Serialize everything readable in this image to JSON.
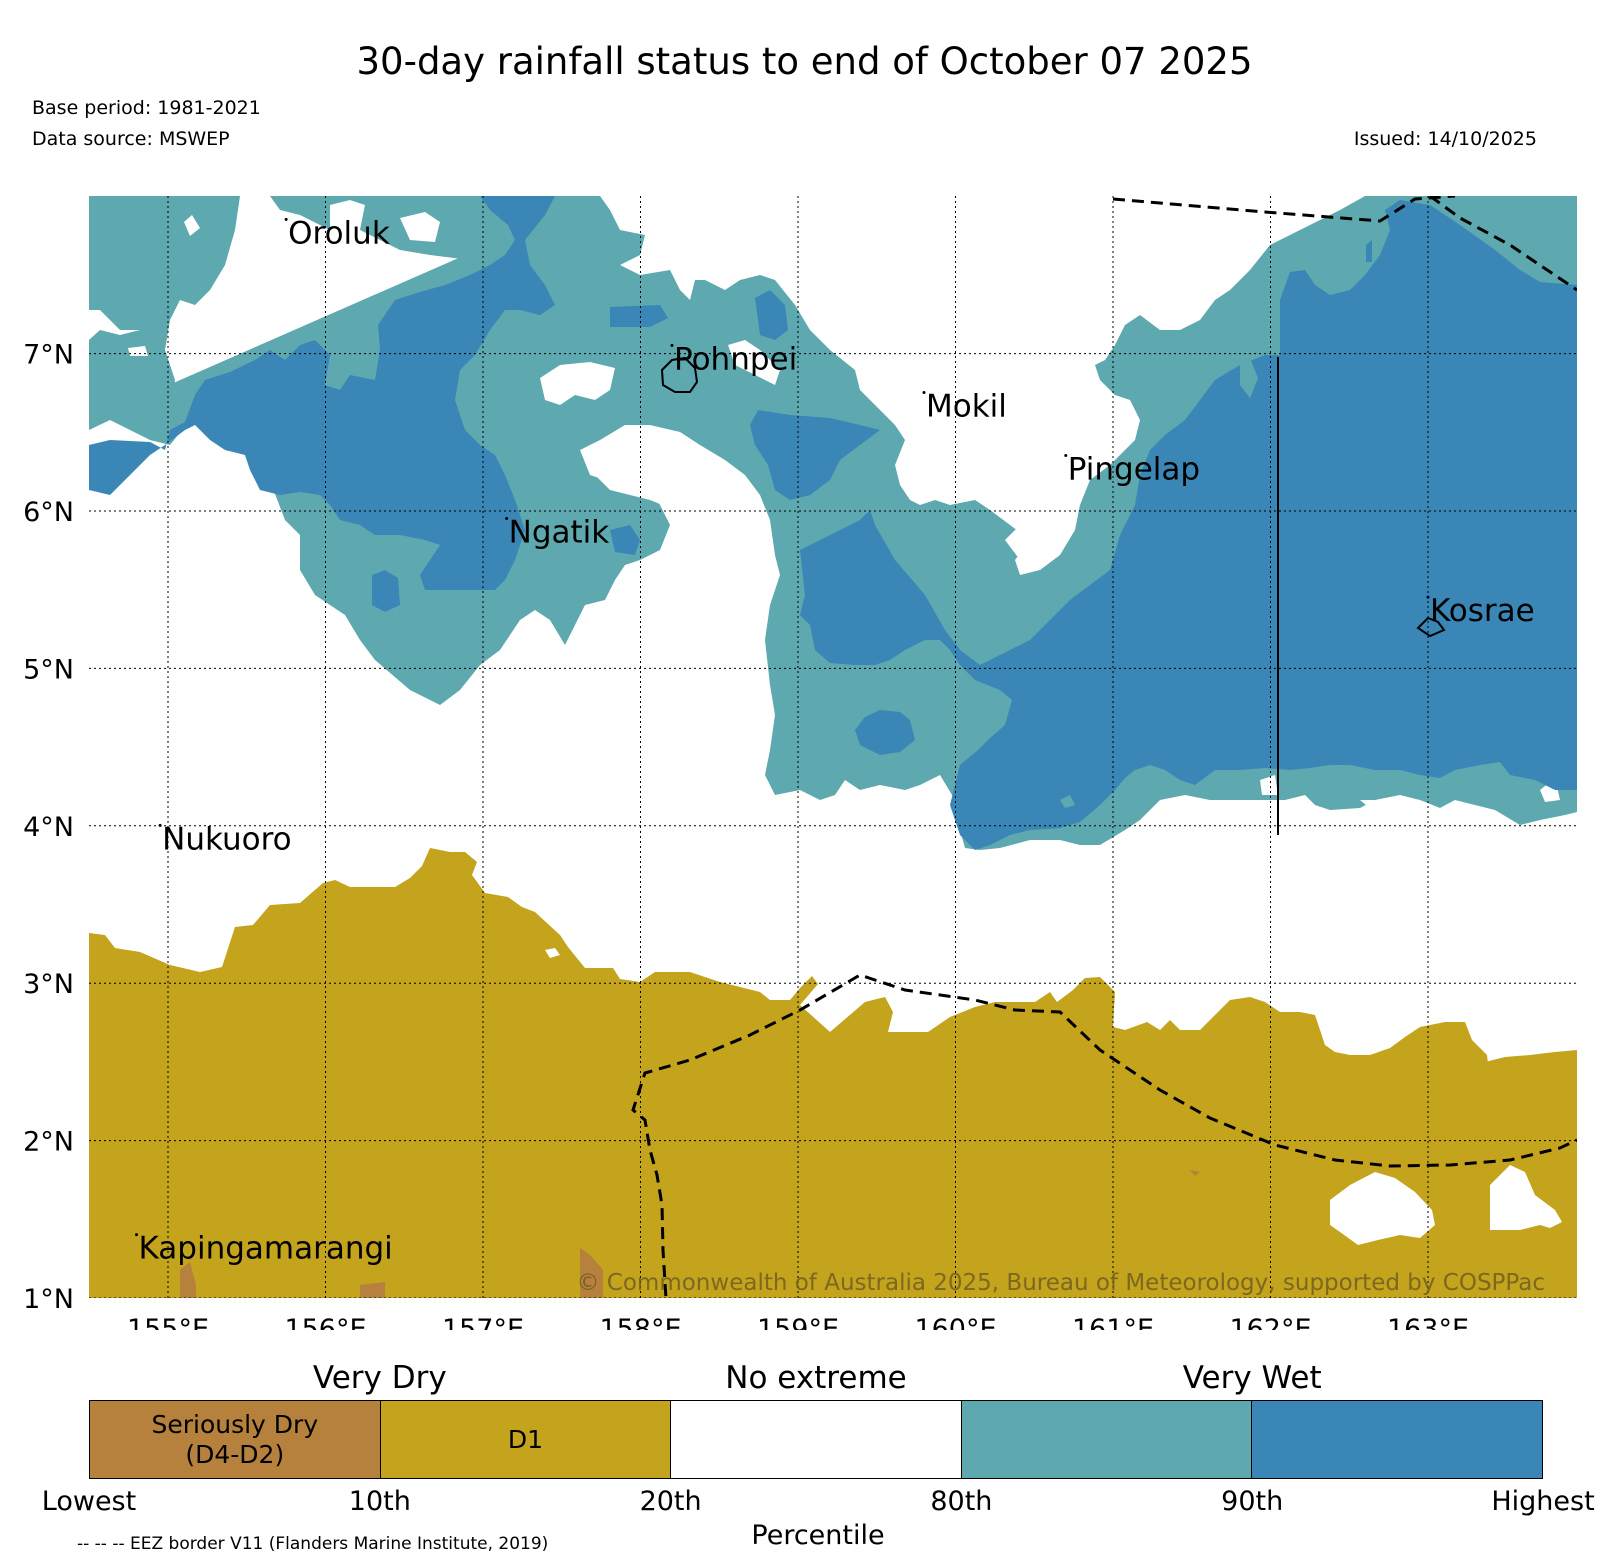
{
  "title": "30-day rainfall status to end of October 07 2025",
  "base_period": "Base period: 1981-2021",
  "data_source": "Data source: MSWEP",
  "issued": "Issued: 14/10/2025",
  "copyright": "© Commonwealth of Australia 2025, Bureau of Meteorology, supported by COSPPac",
  "map": {
    "lon_range": [
      154.5,
      164.0
    ],
    "lat_range": [
      1.0,
      8.0
    ],
    "lon_ticks": [
      {
        "value": 155,
        "label": "155°E"
      },
      {
        "value": 156,
        "label": "156°E"
      },
      {
        "value": 157,
        "label": "157°E"
      },
      {
        "value": 158,
        "label": "158°E"
      },
      {
        "value": 159,
        "label": "159°E"
      },
      {
        "value": 160,
        "label": "160°E"
      },
      {
        "value": 161,
        "label": "161°E"
      },
      {
        "value": 162,
        "label": "162°E"
      },
      {
        "value": 163,
        "label": "163°E"
      }
    ],
    "lat_ticks": [
      {
        "value": 1,
        "label": "1°N"
      },
      {
        "value": 2,
        "label": "2°N"
      },
      {
        "value": 3,
        "label": "3°N"
      },
      {
        "value": 4,
        "label": "4°N"
      },
      {
        "value": 5,
        "label": "5°N"
      },
      {
        "value": 6,
        "label": "6°N"
      },
      {
        "value": 7,
        "label": "7°N"
      }
    ],
    "grid": true,
    "islands": [
      {
        "name": "Oroluk",
        "lon": 155.75,
        "lat": 7.7
      },
      {
        "name": "Pohnpei",
        "lon": 158.2,
        "lat": 6.9
      },
      {
        "name": "Mokil",
        "lon": 159.8,
        "lat": 6.6
      },
      {
        "name": "Pingelap",
        "lon": 160.7,
        "lat": 6.2
      },
      {
        "name": "Ngatik",
        "lon": 157.15,
        "lat": 5.8
      },
      {
        "name": "Kosrae",
        "lon": 163.0,
        "lat": 5.3
      },
      {
        "name": "Nukuoro",
        "lon": 154.95,
        "lat": 3.85
      },
      {
        "name": "Kapingamarangi",
        "lon": 154.8,
        "lat": 1.25
      }
    ]
  },
  "legend": {
    "category_headers": [
      {
        "label": "Very Dry",
        "pos": 0.2
      },
      {
        "label": "No extreme",
        "pos": 0.5
      },
      {
        "label": "Very Wet",
        "pos": 0.8
      }
    ],
    "swatches": [
      {
        "label": "Seriously Dry\n(D4-D2)",
        "color": "#b5813d"
      },
      {
        "label": "D1",
        "color": "#c4a31d"
      },
      {
        "label": "",
        "color": "#ffffff"
      },
      {
        "label": "",
        "color": "#5ea8af"
      },
      {
        "label": "",
        "color": "#3a86b7"
      }
    ],
    "percentiles": [
      "Lowest",
      "10th",
      "20th",
      "80th",
      "90th",
      "Highest"
    ],
    "axis_title": "Percentile",
    "eez_note": "-- -- -- EEZ border V11 (Flanders Marine Institute, 2019)"
  }
}
